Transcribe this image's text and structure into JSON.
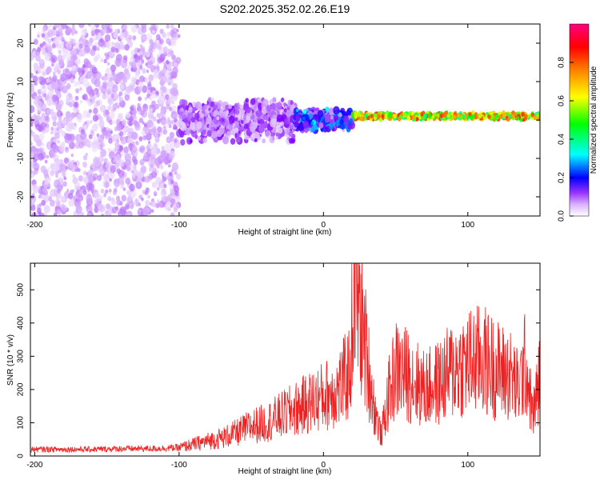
{
  "chart_data": [
    {
      "type": "heatmap",
      "title": "S202.2025.352.02.26.E19",
      "xlabel": "Height of straight line (km)",
      "ylabel": "Frequency (Hz)",
      "xlim": [
        -203,
        150
      ],
      "ylim": [
        -25,
        25
      ],
      "xticks": [
        -200,
        -100,
        0,
        100
      ],
      "yticks": [
        -20,
        -10,
        0,
        10,
        20
      ],
      "colorbar": {
        "label": "Normalized spectral amplitude",
        "range": [
          0,
          1
        ],
        "ticks": [
          0.0,
          0.2,
          0.4,
          0.6,
          0.8
        ],
        "colormap": [
          "#ffffff",
          "#cc99ff",
          "#7f00ff",
          "#0000ff",
          "#00ffff",
          "#00ff00",
          "#ffff00",
          "#ff8000",
          "#ff0000",
          "#ff0080"
        ]
      },
      "description_regions": [
        {
          "x_range": [
            -203,
            -100
          ],
          "freq_spread": 25,
          "amplitude": 0.1
        },
        {
          "x_range": [
            -100,
            -20
          ],
          "freq_spread": 6,
          "amplitude": 0.15
        },
        {
          "x_range": [
            -20,
            20
          ],
          "freq_spread": 3,
          "amplitude": 0.3
        },
        {
          "x_range": [
            20,
            150
          ],
          "freq_center": 1,
          "freq_spread": 1,
          "amplitude": 0.8
        }
      ]
    },
    {
      "type": "line",
      "title": "",
      "xlabel": "Height of straight line (km)",
      "ylabel": "SNR (10 * v/v)",
      "xlim": [
        -203,
        150
      ],
      "ylim": [
        0,
        580
      ],
      "xticks": [
        -200,
        -100,
        0,
        100
      ],
      "yticks": [
        0,
        100,
        200,
        300,
        400,
        500
      ],
      "series": [
        {
          "name": "SNR",
          "color": "#ee2222",
          "x": [
            -203,
            -180,
            -160,
            -140,
            -120,
            -100,
            -90,
            -80,
            -70,
            -60,
            -50,
            -40,
            -30,
            -20,
            -10,
            0,
            10,
            18,
            22,
            25,
            30,
            35,
            40,
            45,
            50,
            60,
            70,
            80,
            90,
            100,
            110,
            120,
            130,
            135,
            140,
            145,
            150
          ],
          "values": [
            20,
            20,
            20,
            22,
            22,
            25,
            35,
            45,
            55,
            70,
            90,
            100,
            120,
            140,
            160,
            180,
            200,
            250,
            560,
            440,
            300,
            150,
            60,
            180,
            260,
            240,
            200,
            220,
            260,
            280,
            290,
            260,
            240,
            200,
            280,
            120,
            240
          ]
        }
      ]
    }
  ]
}
